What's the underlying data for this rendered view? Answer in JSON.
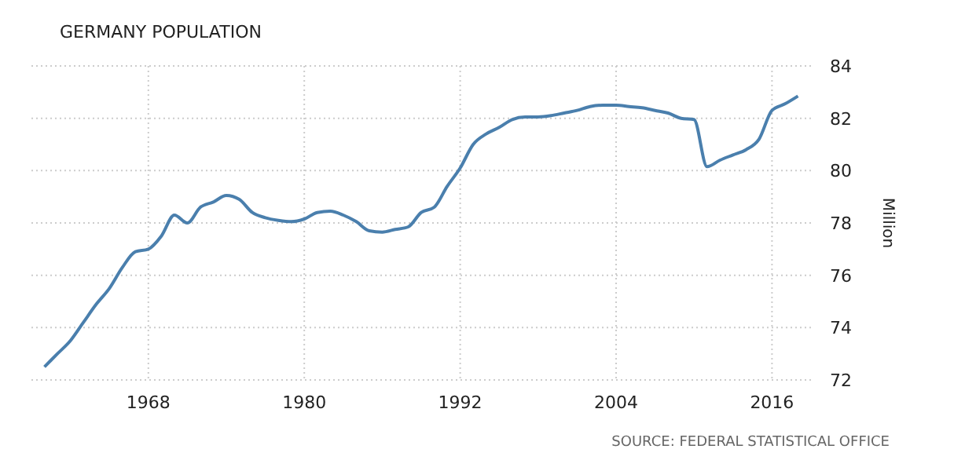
{
  "chart_data": {
    "type": "line",
    "title": "GERMANY POPULATION",
    "ylabel": "Million",
    "annotations": [
      "SOURCE: FEDERAL STATISTICAL OFFICE"
    ],
    "x": [
      1960,
      1961,
      1962,
      1963,
      1964,
      1965,
      1966,
      1967,
      1968,
      1969,
      1970,
      1971,
      1972,
      1973,
      1974,
      1975,
      1976,
      1977,
      1978,
      1979,
      1980,
      1981,
      1982,
      1983,
      1984,
      1985,
      1986,
      1987,
      1988,
      1989,
      1990,
      1991,
      1992,
      1993,
      1994,
      1995,
      1996,
      1997,
      1998,
      1999,
      2000,
      2001,
      2002,
      2003,
      2004,
      2005,
      2006,
      2007,
      2008,
      2009,
      2010,
      2011,
      2012,
      2013,
      2014,
      2015,
      2016,
      2017,
      2018
    ],
    "series": [
      {
        "color": "#4a7fad",
        "values": [
          72.5,
          73.0,
          73.5,
          74.2,
          74.9,
          75.5,
          76.3,
          76.9,
          77.0,
          77.5,
          78.3,
          78.0,
          78.6,
          78.8,
          79.05,
          78.9,
          78.4,
          78.2,
          78.1,
          78.05,
          78.15,
          78.4,
          78.45,
          78.3,
          78.05,
          77.7,
          77.65,
          77.75,
          77.85,
          78.4,
          78.6,
          79.4,
          80.1,
          81.0,
          81.4,
          81.65,
          81.95,
          82.05,
          82.05,
          82.1,
          82.2,
          82.3,
          82.45,
          82.5,
          82.5,
          82.45,
          82.4,
          82.3,
          82.2,
          82.0,
          81.95,
          80.15,
          80.4,
          80.6,
          80.8,
          81.2,
          82.3,
          82.55,
          82.85
        ]
      }
    ],
    "xlim": [
      1959,
      2019
    ],
    "xticks": [
      1968,
      1980,
      1992,
      2004,
      2016
    ],
    "ylim": [
      72,
      84
    ],
    "yticks": [
      72,
      74,
      76,
      78,
      80,
      82,
      84
    ],
    "grid": true,
    "line_style": "solid",
    "marker": "none"
  }
}
